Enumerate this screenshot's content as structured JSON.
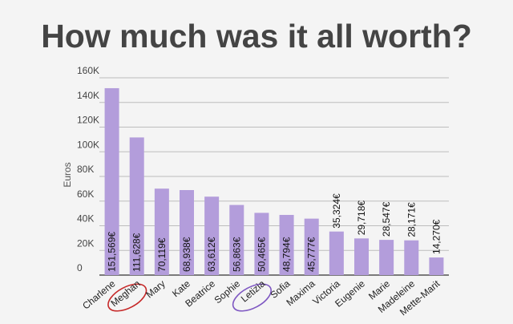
{
  "title": "How much was it all worth?",
  "chart_data": {
    "type": "bar",
    "title": "How much was it all worth?",
    "xlabel": "",
    "ylabel": "Euros",
    "ylim": [
      0,
      160000
    ],
    "yticks": [
      {
        "value": 0,
        "label": "0"
      },
      {
        "value": 20000,
        "label": "20K"
      },
      {
        "value": 40000,
        "label": "40K"
      },
      {
        "value": 60000,
        "label": "60K"
      },
      {
        "value": 80000,
        "label": "80K"
      },
      {
        "value": 100000,
        "label": "100K"
      },
      {
        "value": 120000,
        "label": "120K"
      },
      {
        "value": 140000,
        "label": "140K"
      },
      {
        "value": 160000,
        "label": "160K"
      }
    ],
    "grid": true,
    "bar_color": "#b39ddb",
    "categories": [
      "Charlene",
      "Meghan",
      "Mary",
      "Kate",
      "Beatrice",
      "Sophie",
      "Letizia",
      "Sofia",
      "Maxima",
      "Victoria",
      "Eugenie",
      "Marie",
      "Madeleine",
      "Mette-Marit"
    ],
    "values": [
      151569,
      111628,
      70119,
      68938,
      63612,
      56863,
      50465,
      48794,
      45777,
      35324,
      29718,
      28547,
      28171,
      14270
    ],
    "value_labels": [
      "151,569€",
      "111,628€",
      "70,119€",
      "68,938€",
      "63,612€",
      "56,863€",
      "50,465€",
      "48,794€",
      "45,777€",
      "35,324€",
      "29,718€",
      "28,547€",
      "28,171€",
      "14,270€"
    ],
    "annotations": [
      {
        "category": "Meghan",
        "kind": "circle",
        "color": "#c62828"
      },
      {
        "category": "Letizia",
        "kind": "circle",
        "color": "#7e57c2"
      }
    ]
  }
}
